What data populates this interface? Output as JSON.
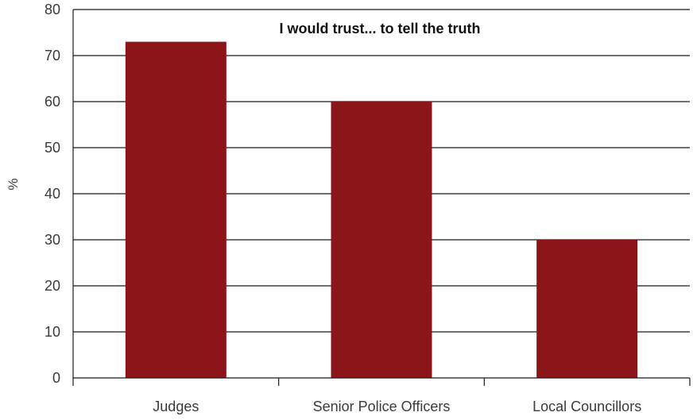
{
  "chart_data": {
    "type": "bar",
    "title": "I would trust... to tell the truth",
    "xlabel": "",
    "ylabel": "%",
    "categories": [
      "Judges",
      "Senior Police Officers",
      "Local Councillors"
    ],
    "values": [
      73,
      60,
      30
    ],
    "ylim": [
      0,
      80
    ],
    "yticks": [
      "0",
      "10",
      "20",
      "30",
      "40",
      "50",
      "60",
      "70",
      "80"
    ],
    "grid": "horizontal",
    "bar_color": "#8b1518",
    "grid_color": "#1a1a1a"
  }
}
